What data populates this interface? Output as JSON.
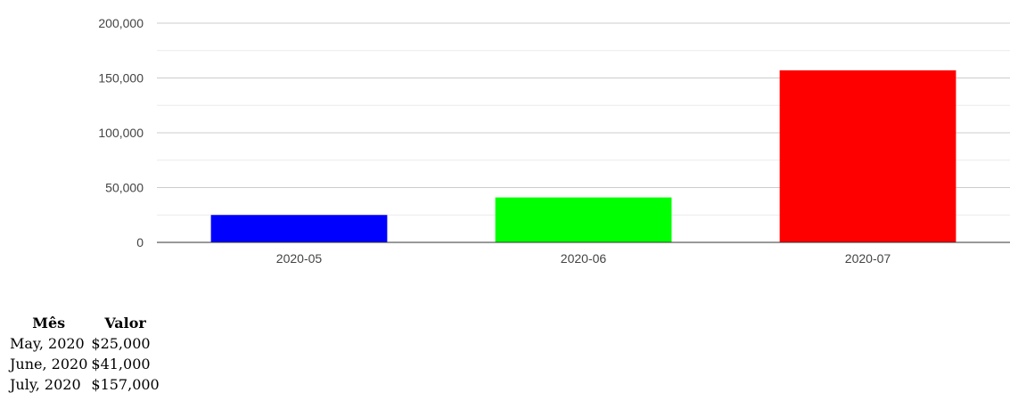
{
  "chart_data": {
    "type": "bar",
    "categories": [
      "2020-05",
      "2020-06",
      "2020-07"
    ],
    "values": [
      25000,
      41000,
      157000
    ],
    "colors": [
      "#0000ff",
      "#00ff00",
      "#ff0000"
    ],
    "ylim": [
      0,
      200000
    ],
    "yticks": [
      0,
      50000,
      100000,
      150000,
      200000
    ],
    "ytick_labels": [
      "0",
      "50,000",
      "100,000",
      "150,000",
      "200,000"
    ],
    "grid": true,
    "title": "",
    "xlabel": "",
    "ylabel": ""
  },
  "table": {
    "headers": [
      "Mês",
      "Valor"
    ],
    "rows": [
      [
        "May, 2020",
        "$25,000"
      ],
      [
        "June, 2020",
        "$41,000"
      ],
      [
        "July, 2020",
        "$157,000"
      ]
    ]
  }
}
